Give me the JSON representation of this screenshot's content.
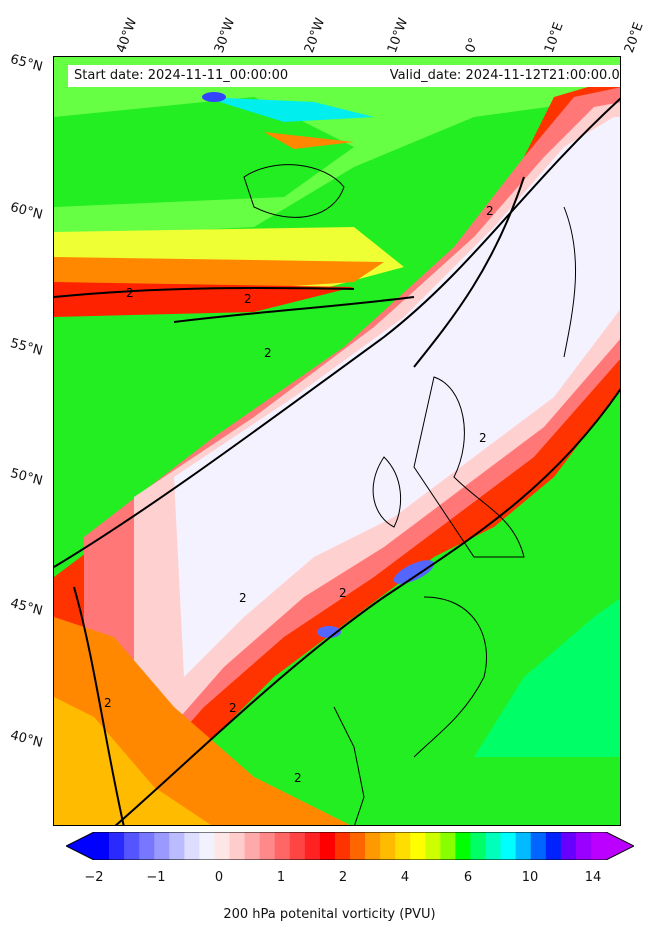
{
  "header": {
    "start_date": "Start date: 2024-11-11_00:00:00",
    "valid_date": "Valid_date: 2024-11-12T21:00:00.00"
  },
  "longitude_labels": [
    "40°W",
    "30°W",
    "20°W",
    "10°W",
    "0°",
    "10°E",
    "20°E"
  ],
  "latitude_labels": [
    "65°N",
    "60°N",
    "55°N",
    "50°N",
    "45°N",
    "40°N"
  ],
  "contour_labels": [
    "2",
    "2",
    "2",
    "2",
    "2",
    "2",
    "2",
    "2",
    "2",
    "2"
  ],
  "colorbar": {
    "ticks": [
      "−2",
      "−1",
      "0",
      "1",
      "2",
      "4",
      "6",
      "10",
      "14"
    ],
    "label": "200 hPa potenital vorticity (PVU)",
    "colors": [
      "#0000ff",
      "#2a2aff",
      "#5555ff",
      "#7777ff",
      "#9999ff",
      "#bbbbff",
      "#ddddff",
      "#f2f2ff",
      "#ffe6e6",
      "#ffcccc",
      "#ffaaaa",
      "#ff8888",
      "#ff6666",
      "#ff4444",
      "#ff2222",
      "#ff0000",
      "#ff3300",
      "#ff6600",
      "#ff9900",
      "#ffbb00",
      "#ffdd00",
      "#ffff00",
      "#ccff00",
      "#88ff00",
      "#00ff00",
      "#00ff66",
      "#00ffbb",
      "#00ffff",
      "#00bbff",
      "#0066ff",
      "#0022ff",
      "#6600ff",
      "#9900ff",
      "#bb00ff"
    ],
    "under_color": "#0000ff",
    "over_color": "#bb00ff"
  },
  "field_colors": {
    "green": "#22ee22",
    "light_green": "#66ff44",
    "yellow": "#eeff33",
    "orange": "#ff8800",
    "red": "#ff2200",
    "light_red": "#ff7777",
    "pink": "#ffd0d0",
    "white": "#f4f2ff",
    "blue": "#5566ff",
    "cyan": "#00eeee"
  }
}
